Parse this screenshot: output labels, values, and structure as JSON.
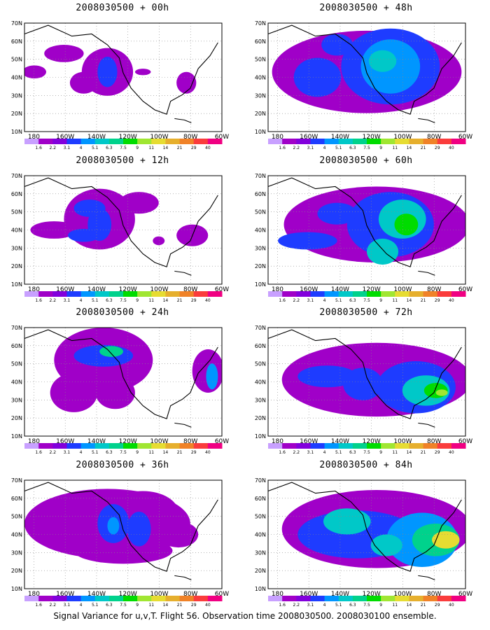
{
  "caption": "Signal Variance for u,v,T. Flight 56. Observation time 2008030500. 2008030100 ensemble.",
  "colorbar": {
    "labels": [
      "1.6",
      "2.2",
      "3.1",
      "4",
      "5.1",
      "6.3",
      "7.5",
      "9",
      "11",
      "14",
      "21",
      "29",
      "40"
    ],
    "colors": [
      "#a000c8",
      "#8200dc",
      "#1e3cff",
      "#0096ff",
      "#00c8c8",
      "#00d28c",
      "#00dc00",
      "#a0e632",
      "#e6dc32",
      "#e6af2d",
      "#f08228",
      "#fa3c3c",
      "#f00082"
    ]
  },
  "chart_data": [
    {
      "type": "heatmap",
      "title": "2008030500 + 00h",
      "lead_hours": 0,
      "x_ticks": [
        "180",
        "160W",
        "140W",
        "120W",
        "100W",
        "80W",
        "60W"
      ],
      "y_ticks": [
        "10N",
        "20N",
        "30N",
        "40N",
        "50N",
        "60N",
        "70N"
      ],
      "xlim": [
        -190,
        -60
      ],
      "ylim": [
        10,
        70
      ],
      "max_level": "4",
      "grid": true
    },
    {
      "type": "heatmap",
      "title": "2008030500 + 12h",
      "lead_hours": 12,
      "x_ticks": [
        "180",
        "160W",
        "140W",
        "120W",
        "100W",
        "80W",
        "60W"
      ],
      "y_ticks": [
        "10N",
        "20N",
        "30N",
        "40N",
        "50N",
        "60N",
        "70N"
      ],
      "xlim": [
        -190,
        -60
      ],
      "ylim": [
        10,
        70
      ],
      "max_level": "5.1",
      "grid": true
    },
    {
      "type": "heatmap",
      "title": "2008030500 + 24h",
      "lead_hours": 24,
      "x_ticks": [
        "180",
        "160W",
        "140W",
        "120W",
        "100W",
        "80W",
        "60W"
      ],
      "y_ticks": [
        "10N",
        "20N",
        "30N",
        "40N",
        "50N",
        "60N",
        "70N"
      ],
      "xlim": [
        -190,
        -60
      ],
      "ylim": [
        10,
        70
      ],
      "max_level": "6.3",
      "grid": true
    },
    {
      "type": "heatmap",
      "title": "2008030500 + 36h",
      "lead_hours": 36,
      "x_ticks": [
        "180",
        "160W",
        "140W",
        "120W",
        "100W",
        "80W",
        "60W"
      ],
      "y_ticks": [
        "10N",
        "20N",
        "30N",
        "40N",
        "50N",
        "60N",
        "70N"
      ],
      "xlim": [
        -190,
        -60
      ],
      "ylim": [
        10,
        70
      ],
      "max_level": "5.1",
      "grid": true
    },
    {
      "type": "heatmap",
      "title": "2008030500 + 48h",
      "lead_hours": 48,
      "x_ticks": [
        "180",
        "160W",
        "140W",
        "120W",
        "100W",
        "80W",
        "60W"
      ],
      "y_ticks": [
        "10N",
        "20N",
        "30N",
        "40N",
        "50N",
        "60N",
        "70N"
      ],
      "xlim": [
        -190,
        -60
      ],
      "ylim": [
        10,
        70
      ],
      "max_level": "6.3",
      "grid": true
    },
    {
      "type": "heatmap",
      "title": "2008030500 + 60h",
      "lead_hours": 60,
      "x_ticks": [
        "180",
        "160W",
        "140W",
        "120W",
        "100W",
        "80W",
        "60W"
      ],
      "y_ticks": [
        "10N",
        "20N",
        "30N",
        "40N",
        "50N",
        "60N",
        "70N"
      ],
      "xlim": [
        -190,
        -60
      ],
      "ylim": [
        10,
        70
      ],
      "max_level": "9",
      "grid": true
    },
    {
      "type": "heatmap",
      "title": "2008030500 + 72h",
      "lead_hours": 72,
      "x_ticks": [
        "180",
        "160W",
        "140W",
        "120W",
        "100W",
        "80W",
        "60W"
      ],
      "y_ticks": [
        "10N",
        "20N",
        "30N",
        "40N",
        "50N",
        "60N",
        "70N"
      ],
      "xlim": [
        -190,
        -60
      ],
      "ylim": [
        10,
        70
      ],
      "max_level": "11",
      "grid": true
    },
    {
      "type": "heatmap",
      "title": "2008030500 + 84h",
      "lead_hours": 84,
      "x_ticks": [
        "180",
        "160W",
        "140W",
        "120W",
        "100W",
        "80W",
        "60W"
      ],
      "y_ticks": [
        "10N",
        "20N",
        "30N",
        "40N",
        "50N",
        "60N",
        "70N"
      ],
      "xlim": [
        -190,
        -60
      ],
      "ylim": [
        10,
        70
      ],
      "max_level": "14",
      "grid": true
    }
  ]
}
